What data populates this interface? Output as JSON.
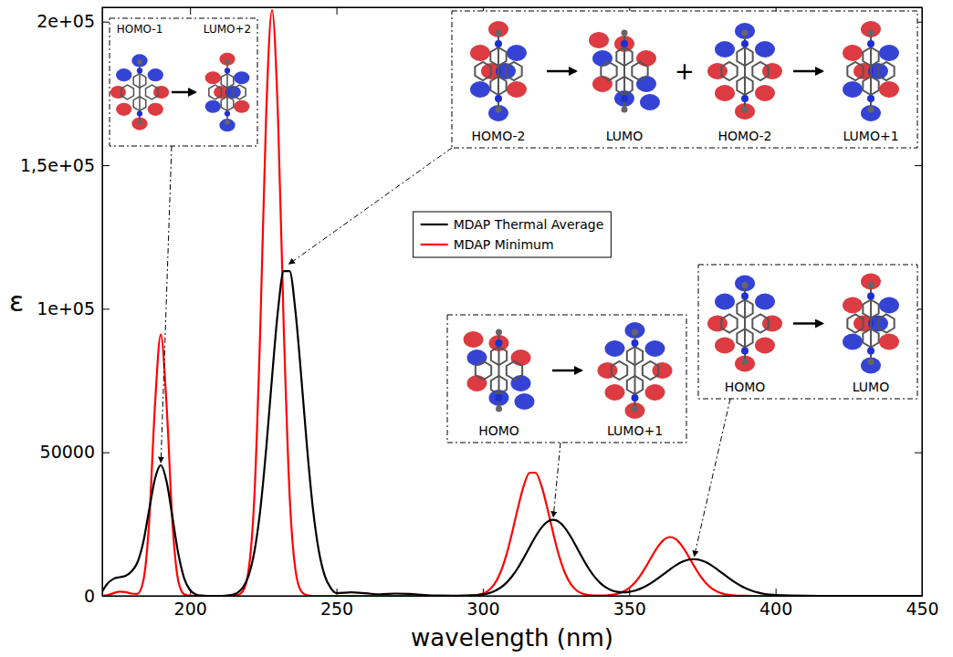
{
  "chart_data": {
    "type": "line",
    "xlabel": "wavelength (nm)",
    "ylabel": "ε",
    "xlim": [
      170,
      450
    ],
    "ylim": [
      0,
      205000
    ],
    "xticks": [
      200,
      250,
      300,
      350,
      400,
      450
    ],
    "yticks": [
      0,
      50000,
      {
        "value": 100000,
        "label": "1e+05"
      },
      {
        "value": 150000,
        "label": "1,5e+05"
      },
      {
        "value": 200000,
        "label": "2e+05"
      }
    ],
    "legend": "top",
    "x": [
      170,
      172,
      174,
      176,
      178,
      180,
      182,
      184,
      186,
      188,
      190,
      192,
      194,
      196,
      198,
      200,
      202,
      204,
      206,
      208,
      210,
      212,
      214,
      216,
      218,
      220,
      222,
      224,
      226,
      228,
      230,
      232,
      234,
      236,
      238,
      240,
      242,
      244,
      246,
      248,
      250,
      255,
      260,
      265,
      270,
      275,
      280,
      285,
      290,
      295,
      298,
      300,
      302,
      304,
      306,
      308,
      310,
      312,
      314,
      316,
      318,
      320,
      322,
      324,
      326,
      328,
      330,
      332,
      334,
      336,
      338,
      340,
      342,
      344,
      346,
      348,
      350,
      352,
      354,
      356,
      358,
      360,
      362,
      364,
      366,
      368,
      370,
      372,
      374,
      376,
      378,
      380,
      382,
      384,
      386,
      388,
      390,
      392,
      394,
      396,
      398,
      400,
      410,
      420,
      430,
      440,
      450
    ],
    "series": [
      {
        "name": "MDAP Thermal Average",
        "color": "#000000",
        "values": [
          1500,
          4500,
          6000,
          6500,
          7000,
          8500,
          11600,
          18600,
          29800,
          40700,
          45500,
          39700,
          27300,
          14600,
          6100,
          1980,
          500,
          100,
          0,
          0,
          0,
          80,
          295,
          970,
          2800,
          7030,
          15560,
          30100,
          51200,
          76100,
          99100,
          113100,
          113100,
          99100,
          76100,
          51200,
          30100,
          15560,
          7030,
          2800,
          970,
          1200,
          900,
          500,
          800,
          700,
          300,
          100,
          50,
          150,
          246,
          490,
          930,
          1660,
          2820,
          4500,
          6830,
          9780,
          13270,
          17010,
          20660,
          23720,
          25780,
          26500,
          25780,
          23720,
          20660,
          17010,
          13270,
          9780,
          6870,
          4577,
          2962,
          1914,
          1366,
          1210,
          1386,
          1847,
          2580,
          3580,
          4810,
          6230,
          7770,
          9290,
          10690,
          11810,
          12550,
          12800,
          12550,
          11810,
          10690,
          9290,
          7770,
          6230,
          4800,
          3560,
          2530,
          1730,
          1140,
          720,
          436,
          254,
          10,
          0,
          0,
          0,
          0
        ]
      },
      {
        "name": "MDAP Minimum",
        "color": "#ff0000",
        "values": [
          0,
          300,
          1000,
          1500,
          1300,
          800,
          700,
          5100,
          25300,
          66100,
          91000,
          66100,
          25300,
          5100,
          550,
          30,
          0,
          0,
          0,
          0,
          0,
          0,
          0,
          180,
          1550,
          9000,
          35200,
          93500,
          167800,
          204000,
          167800,
          93500,
          35200,
          9000,
          1550,
          180,
          0,
          0,
          0,
          0,
          0,
          0,
          0,
          0,
          0,
          0,
          0,
          0,
          0,
          50,
          290,
          790,
          1910,
          4150,
          8100,
          14100,
          22000,
          30700,
          38400,
          42900,
          42900,
          38400,
          30700,
          22000,
          14100,
          8100,
          4150,
          1910,
          790,
          290,
          120,
          90,
          146,
          346,
          750,
          1510,
          2770,
          4710,
          7380,
          10660,
          14200,
          17420,
          19680,
          20500,
          19680,
          17420,
          14200,
          10660,
          7380,
          4710,
          2770,
          1510,
          750,
          346,
          146,
          57,
          20,
          0,
          0,
          0,
          0,
          0,
          0,
          0,
          0,
          0,
          0
        ]
      }
    ],
    "annotations": [
      {
        "x": 190,
        "y": 45500,
        "transitions": [
          {
            "from": "HOMO-1",
            "to": "LUMO+2"
          }
        ]
      },
      {
        "x": 233,
        "y": 115000,
        "transitions": [
          {
            "from": "HOMO-2",
            "to": "LUMO"
          },
          {
            "from": "HOMO-2",
            "to": "LUMO+1"
          }
        ],
        "separator": "+"
      },
      {
        "x": 324,
        "y": 26500,
        "transitions": [
          {
            "from": "HOMO",
            "to": "LUMO+1"
          }
        ]
      },
      {
        "x": 372,
        "y": 12800,
        "transitions": [
          {
            "from": "HOMO",
            "to": "LUMO"
          }
        ]
      }
    ]
  }
}
